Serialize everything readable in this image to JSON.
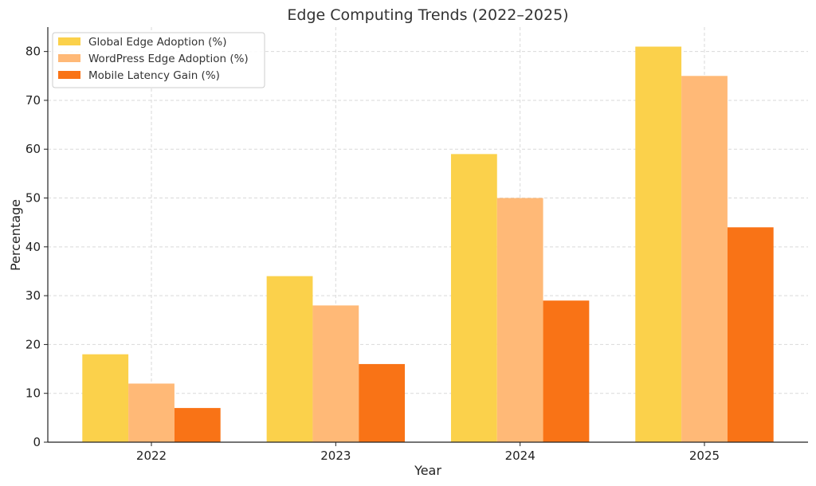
{
  "chart_data": {
    "type": "bar",
    "title": "Edge Computing Trends (2022–2025)",
    "xlabel": "Year",
    "ylabel": "Percentage",
    "categories": [
      "2022",
      "2023",
      "2024",
      "2025"
    ],
    "series": [
      {
        "name": "Global Edge Adoption (%)",
        "values": [
          18,
          34,
          59,
          81
        ],
        "color": "#FBD14B"
      },
      {
        "name": "WordPress Edge Adoption (%)",
        "values": [
          12,
          28,
          50,
          75
        ],
        "color": "#FFB977"
      },
      {
        "name": "Mobile Latency Gain (%)",
        "values": [
          7,
          16,
          29,
          44
        ],
        "color": "#F97316"
      }
    ],
    "ylim": [
      0,
      85
    ],
    "yticks": [
      0,
      10,
      20,
      30,
      40,
      50,
      60,
      70,
      80
    ],
    "grid": true,
    "legend_position": "top-left"
  }
}
